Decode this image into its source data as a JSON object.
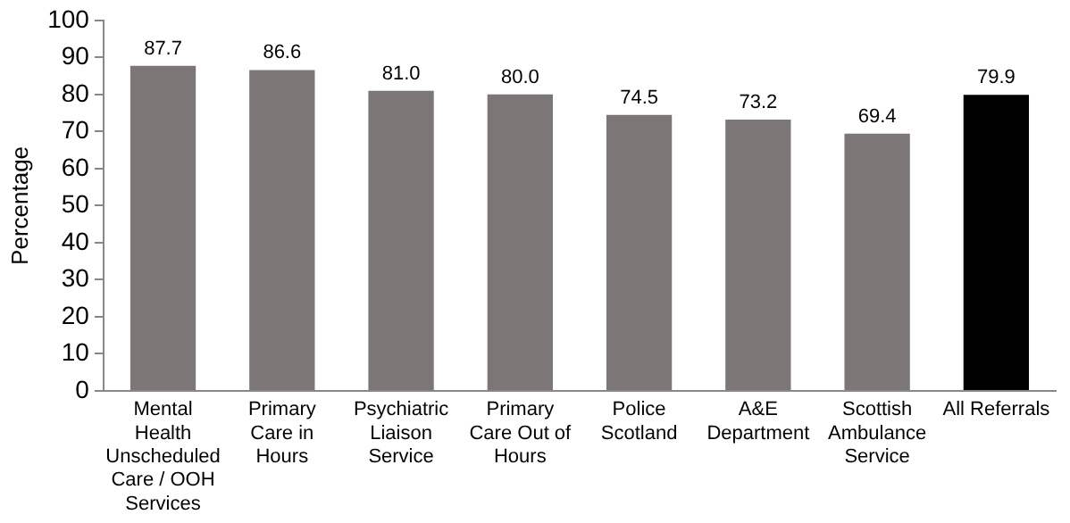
{
  "chart_data": {
    "type": "bar",
    "ylabel": "Percentage",
    "categories": [
      "Mental Health Unscheduled Care / OOH Services",
      "Primary Care in Hours",
      "Psychiatric Liaison Service",
      "Primary Care Out of Hours",
      "Police Scotland",
      "A&E Department",
      "Scottish Ambulance Service",
      "All Referrals"
    ],
    "values": [
      87.7,
      86.6,
      81.0,
      80.0,
      74.5,
      73.2,
      69.4,
      79.9
    ],
    "colors": [
      "#7c7676",
      "#7c7676",
      "#7c7676",
      "#7c7676",
      "#7c7676",
      "#7c7676",
      "#7c7676",
      "#000000"
    ],
    "value_labels": [
      "87.7",
      "86.6",
      "81.0",
      "80.0",
      "74.5",
      "73.2",
      "69.4",
      "79.9"
    ],
    "ylim": [
      0,
      100
    ],
    "yticks": [
      0,
      10,
      20,
      30,
      40,
      50,
      60,
      70,
      80,
      90,
      100
    ],
    "grid": false,
    "legend": false
  }
}
